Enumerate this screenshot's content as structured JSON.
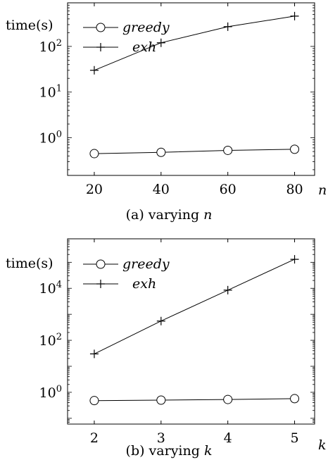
{
  "chart_data": [
    {
      "type": "line",
      "caption_prefix": "(a) varying ",
      "caption_var": "n",
      "ylabel": "time(s)",
      "xlabel": "n",
      "yscale": "log",
      "x": [
        20,
        40,
        60,
        80
      ],
      "xlim": [
        12,
        86
      ],
      "ylim": [
        0.15,
        900
      ],
      "y_ticks": [
        {
          "value": 1,
          "base": "10",
          "exp": "0"
        },
        {
          "value": 10,
          "base": "10",
          "exp": "1"
        },
        {
          "value": 100,
          "base": "10",
          "exp": "2"
        }
      ],
      "legend_position": "top-left",
      "series": [
        {
          "name": "greedy",
          "marker": "circle",
          "values": [
            0.45,
            0.48,
            0.53,
            0.56
          ]
        },
        {
          "name": "exh",
          "marker": "plus",
          "values": [
            30,
            120,
            270,
            460
          ]
        }
      ]
    },
    {
      "type": "line",
      "caption_prefix": "(b) varying ",
      "caption_var": "k",
      "ylabel": "time(s)",
      "xlabel": "k",
      "yscale": "log",
      "x": [
        2,
        3,
        4,
        5
      ],
      "xlim": [
        1.6,
        5.3
      ],
      "ylim": [
        0.06,
        800000
      ],
      "y_ticks": [
        {
          "value": 1,
          "base": "10",
          "exp": "0"
        },
        {
          "value": 100,
          "base": "10",
          "exp": "2"
        },
        {
          "value": 10000,
          "base": "10",
          "exp": "4"
        }
      ],
      "legend_position": "top-left",
      "series": [
        {
          "name": "greedy",
          "marker": "circle",
          "values": [
            0.48,
            0.5,
            0.53,
            0.57
          ]
        },
        {
          "name": "exh",
          "marker": "plus",
          "values": [
            30,
            550,
            8500,
            130000
          ]
        }
      ]
    }
  ]
}
